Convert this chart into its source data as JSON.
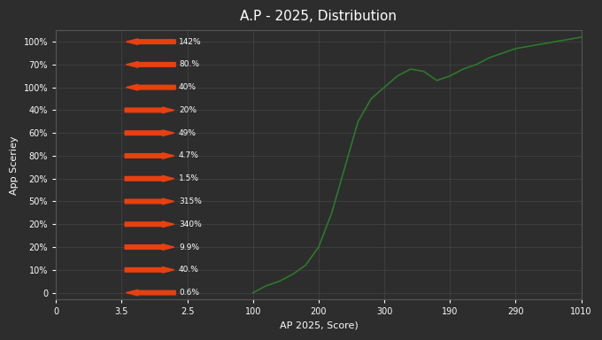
{
  "title": "A.P - 2025, Distribution",
  "xlabel": "AP 2025, Score)",
  "ylabel": "App Sceriey",
  "bg_color": "#2d2d2d",
  "text_color": "#ffffff",
  "grid_color": "#555555",
  "line_color": "#2a7a2a",
  "arrow_color": "#e84010",
  "x_tick_positions": [
    0,
    1,
    2,
    3,
    4,
    5,
    6,
    7,
    8
  ],
  "x_tick_labels": [
    "0",
    "3.5",
    "2.5",
    "100",
    "200",
    "300",
    "190",
    "290",
    "1010"
  ],
  "y_tick_positions": [
    0,
    1,
    2,
    3,
    4,
    5,
    6,
    7,
    8,
    9,
    10,
    11
  ],
  "y_tick_labels": [
    "0",
    "10%",
    "20%",
    "20%",
    "50%",
    "20%",
    "80%",
    "60%",
    "40%",
    "100%",
    "70%",
    "100%"
  ],
  "arrows": [
    {
      "yi": 11,
      "label": "142%",
      "direction": "left"
    },
    {
      "yi": 10,
      "label": "80.%",
      "direction": "left"
    },
    {
      "yi": 9,
      "label": "40%",
      "direction": "left"
    },
    {
      "yi": 8,
      "label": "20%",
      "direction": "right"
    },
    {
      "yi": 7,
      "label": "49%",
      "direction": "right"
    },
    {
      "yi": 6,
      "label": "4.7%",
      "direction": "right"
    },
    {
      "yi": 5,
      "label": "1.5%",
      "direction": "right"
    },
    {
      "yi": 4,
      "label": "315%",
      "direction": "right"
    },
    {
      "yi": 3,
      "label": "340%",
      "direction": "right"
    },
    {
      "yi": 2,
      "label": "9.9%",
      "direction": "right"
    },
    {
      "yi": 1,
      "label": "40.%",
      "direction": "right"
    },
    {
      "yi": 0,
      "label": "0.6%",
      "direction": "left"
    }
  ],
  "curve_xi": [
    3,
    3.2,
    3.4,
    3.6,
    3.8,
    4.0,
    4.2,
    4.4,
    4.6,
    4.8,
    5.0,
    5.2,
    5.4,
    5.6,
    5.8,
    6.0,
    6.2,
    6.4,
    6.6,
    6.8,
    7.0,
    7.2,
    7.4,
    7.6,
    7.8,
    8.0
  ],
  "curve_y": [
    0,
    0.3,
    0.5,
    0.8,
    1.2,
    2.0,
    3.5,
    5.5,
    7.5,
    8.5,
    9.0,
    9.5,
    9.8,
    9.7,
    9.3,
    9.5,
    9.8,
    10.0,
    10.3,
    10.5,
    10.7,
    10.8,
    10.9,
    11.0,
    11.1,
    11.2
  ]
}
